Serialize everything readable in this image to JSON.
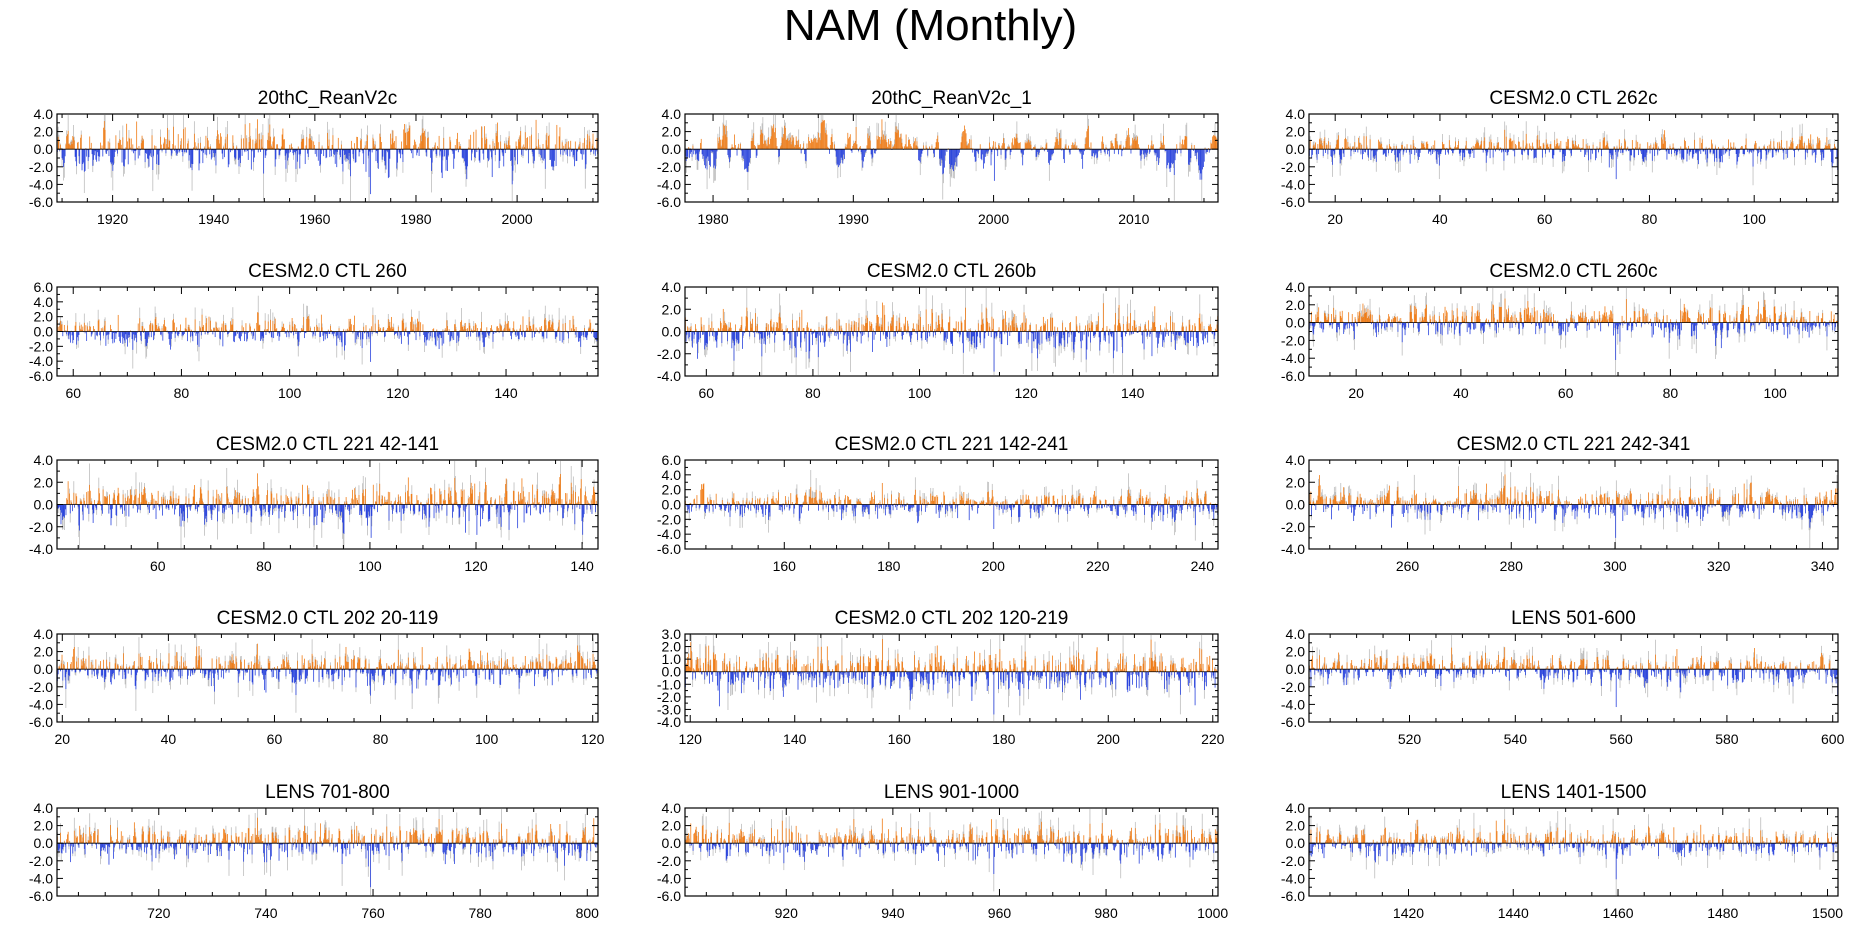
{
  "title": "NAM (Monthly)",
  "colors": {
    "positive": "#f07d18",
    "negative": "#2a44dd",
    "spread": "#bdbdbd",
    "axis": "#000000"
  },
  "chart_data": [
    {
      "type": "bar",
      "title": "20thC_ReanV2c",
      "xlim": [
        1909,
        2016
      ],
      "xticks": [
        1920,
        1940,
        1960,
        1980,
        2000
      ],
      "xtick_labels": [
        "1920",
        "1940",
        "1960",
        "1980",
        "2000"
      ],
      "ylim": [
        -6,
        4
      ],
      "yticks": [
        4,
        2,
        0,
        -2,
        -4,
        -6
      ],
      "ytick_labels": [
        "4.0",
        "2.0",
        "0.0",
        "-2.0",
        "-4.0",
        "-6.0"
      ],
      "extremes": {
        "max": 3.4,
        "min": -5.1
      },
      "density": 1.3,
      "smooth": 0.35,
      "seed": 11
    },
    {
      "type": "bar",
      "title": "20thC_ReanV2c_1",
      "xlim": [
        1978,
        2016
      ],
      "xticks": [
        1980,
        1990,
        2000,
        2010
      ],
      "xtick_labels": [
        "1980",
        "1990",
        "2000",
        "2010"
      ],
      "ylim": [
        -6,
        4
      ],
      "yticks": [
        4,
        2,
        0,
        -2,
        -4,
        -6
      ],
      "ytick_labels": [
        "4.0",
        "2.0",
        "0.0",
        "-2.0",
        "-4.0",
        "-6.0"
      ],
      "extremes": {
        "max": 3.4,
        "min": -3.6
      },
      "density": 1.2,
      "smooth": 0.8,
      "seed": 23
    },
    {
      "type": "bar",
      "title": "CESM2.0 CTL 262c",
      "xlim": [
        15,
        116
      ],
      "xticks": [
        20,
        40,
        60,
        80,
        100
      ],
      "xtick_labels": [
        "20",
        "40",
        "60",
        "80",
        "100"
      ],
      "ylim": [
        -6,
        4
      ],
      "yticks": [
        4,
        2,
        0,
        -2,
        -4,
        -6
      ],
      "ytick_labels": [
        "4.0",
        "2.0",
        "0.0",
        "-2.0",
        "-4.0",
        "-6.0"
      ],
      "extremes": {
        "max": 2.2,
        "min": -3.4
      },
      "density": 1.3,
      "smooth": 0.35,
      "seed": 37
    },
    {
      "type": "bar",
      "title": "CESM2.0 CTL 260",
      "xlim": [
        57,
        157
      ],
      "xticks": [
        60,
        80,
        100,
        120,
        140
      ],
      "xtick_labels": [
        "60",
        "80",
        "100",
        "120",
        "140"
      ],
      "ylim": [
        -6,
        6
      ],
      "yticks": [
        6,
        4,
        2,
        0,
        -2,
        -4,
        -6
      ],
      "ytick_labels": [
        "6.0",
        "4.0",
        "2.0",
        "0.0",
        "-2.0",
        "-4.0",
        "-6.0"
      ],
      "extremes": {
        "max": 2.6,
        "min": -4.1
      },
      "density": 1.3,
      "smooth": 0.3,
      "seed": 41
    },
    {
      "type": "bar",
      "title": "CESM2.0 CTL 260b",
      "xlim": [
        56,
        156
      ],
      "xticks": [
        60,
        80,
        100,
        120,
        140
      ],
      "xtick_labels": [
        "60",
        "80",
        "100",
        "120",
        "140"
      ],
      "ylim": [
        -4,
        4
      ],
      "yticks": [
        4,
        2,
        0,
        -2,
        -4
      ],
      "ytick_labels": [
        "4.0",
        "2.0",
        "0.0",
        "-2.0",
        "-4.0"
      ],
      "extremes": {
        "max": 2.6,
        "min": -3.6
      },
      "density": 1.4,
      "smooth": 0.3,
      "seed": 53
    },
    {
      "type": "bar",
      "title": "CESM2.0 CTL 260c",
      "xlim": [
        11,
        112
      ],
      "xticks": [
        20,
        40,
        60,
        80,
        100
      ],
      "xtick_labels": [
        "20",
        "40",
        "60",
        "80",
        "100"
      ],
      "ylim": [
        -6,
        4
      ],
      "yticks": [
        4,
        2,
        0,
        -2,
        -4,
        -6
      ],
      "ytick_labels": [
        "4.0",
        "2.0",
        "0.0",
        "-2.0",
        "-4.0",
        "-6.0"
      ],
      "extremes": {
        "max": 2.7,
        "min": -4.2
      },
      "density": 1.4,
      "smooth": 0.3,
      "seed": 67
    },
    {
      "type": "bar",
      "title": "CESM2.0 CTL 221 42-141",
      "xlim": [
        41,
        143
      ],
      "xticks": [
        60,
        80,
        100,
        120,
        140
      ],
      "xtick_labels": [
        "60",
        "80",
        "100",
        "120",
        "140"
      ],
      "ylim": [
        -4,
        4
      ],
      "yticks": [
        4,
        2,
        0,
        -2,
        -4
      ],
      "ytick_labels": [
        "4.0",
        "2.0",
        "0.0",
        "-2.0",
        "-4.0"
      ],
      "extremes": {
        "max": 2.8,
        "min": -3.0
      },
      "density": 1.4,
      "smooth": 0.3,
      "seed": 71
    },
    {
      "type": "bar",
      "title": "CESM2.0 CTL 221 142-241",
      "xlim": [
        141,
        243
      ],
      "xticks": [
        160,
        180,
        200,
        220,
        240
      ],
      "xtick_labels": [
        "160",
        "180",
        "200",
        "220",
        "240"
      ],
      "ylim": [
        -6,
        6
      ],
      "yticks": [
        6,
        4,
        2,
        0,
        -2,
        -4,
        -6
      ],
      "ytick_labels": [
        "6.0",
        "4.0",
        "2.0",
        "0.0",
        "-2.0",
        "-4.0",
        "-6.0"
      ],
      "extremes": {
        "max": 2.9,
        "min": -3.3
      },
      "density": 1.3,
      "smooth": 0.3,
      "seed": 83
    },
    {
      "type": "bar",
      "title": "CESM2.0 CTL 221 242-341",
      "xlim": [
        241,
        343
      ],
      "xticks": [
        260,
        280,
        300,
        320,
        340
      ],
      "xtick_labels": [
        "260",
        "280",
        "300",
        "320",
        "340"
      ],
      "ylim": [
        -4,
        4
      ],
      "yticks": [
        4,
        2,
        0,
        -2,
        -4
      ],
      "ytick_labels": [
        "4.0",
        "2.0",
        "0.0",
        "-2.0",
        "-4.0"
      ],
      "extremes": {
        "max": 2.7,
        "min": -3.0
      },
      "density": 1.4,
      "smooth": 0.3,
      "seed": 97
    },
    {
      "type": "bar",
      "title": "CESM2.0 CTL 202 20-119",
      "xlim": [
        19,
        121
      ],
      "xticks": [
        20,
        40,
        60,
        80,
        100,
        120
      ],
      "xtick_labels": [
        "20",
        "40",
        "60",
        "80",
        "100",
        "120"
      ],
      "ylim": [
        -6,
        4
      ],
      "yticks": [
        4,
        2,
        0,
        -2,
        -4,
        -6
      ],
      "ytick_labels": [
        "4.0",
        "2.0",
        "0.0",
        "-2.0",
        "-4.0",
        "-6.0"
      ],
      "extremes": {
        "max": 2.9,
        "min": -3.0
      },
      "density": 1.3,
      "smooth": 0.3,
      "seed": 101
    },
    {
      "type": "bar",
      "title": "CESM2.0 CTL 202 120-219",
      "xlim": [
        119,
        221
      ],
      "xticks": [
        120,
        140,
        160,
        180,
        200,
        220
      ],
      "xtick_labels": [
        "120",
        "140",
        "160",
        "180",
        "200",
        "220"
      ],
      "ylim": [
        -4,
        3
      ],
      "yticks": [
        3,
        2,
        1,
        0,
        -1,
        -2,
        -3,
        -4
      ],
      "ytick_labels": [
        "3.0",
        "2.0",
        "1.0",
        "0.0",
        "-1.0",
        "-2.0",
        "-3.0",
        "-4.0"
      ],
      "extremes": {
        "max": 2.6,
        "min": -3.4
      },
      "density": 1.5,
      "smooth": 0.3,
      "seed": 113
    },
    {
      "type": "bar",
      "title": "LENS 501-600",
      "xlim": [
        501,
        601
      ],
      "xticks": [
        520,
        540,
        560,
        580,
        600
      ],
      "xtick_labels": [
        "520",
        "540",
        "560",
        "580",
        "600"
      ],
      "ylim": [
        -6,
        4
      ],
      "yticks": [
        4,
        2,
        0,
        -2,
        -4,
        -6
      ],
      "ytick_labels": [
        "4.0",
        "2.0",
        "0.0",
        "-2.0",
        "-4.0",
        "-6.0"
      ],
      "extremes": {
        "max": 2.5,
        "min": -4.3
      },
      "density": 1.3,
      "smooth": 0.3,
      "seed": 127
    },
    {
      "type": "bar",
      "title": "LENS 701-800",
      "xlim": [
        701,
        802
      ],
      "xticks": [
        720,
        740,
        760,
        780,
        800
      ],
      "xtick_labels": [
        "720",
        "740",
        "760",
        "780",
        "800"
      ],
      "ylim": [
        -6,
        4
      ],
      "yticks": [
        4,
        2,
        0,
        -2,
        -4,
        -6
      ],
      "ytick_labels": [
        "4.0",
        "2.0",
        "0.0",
        "-2.0",
        "-4.0",
        "-6.0"
      ],
      "extremes": {
        "max": 2.9,
        "min": -5.0
      },
      "density": 1.3,
      "smooth": 0.3,
      "seed": 131
    },
    {
      "type": "bar",
      "title": "LENS 901-1000",
      "xlim": [
        901,
        1001
      ],
      "xticks": [
        920,
        940,
        960,
        980,
        1000
      ],
      "xtick_labels": [
        "920",
        "940",
        "960",
        "980",
        "1000"
      ],
      "ylim": [
        -6,
        4
      ],
      "yticks": [
        4,
        2,
        0,
        -2,
        -4,
        -6
      ],
      "ytick_labels": [
        "4.0",
        "2.0",
        "0.0",
        "-2.0",
        "-4.0",
        "-6.0"
      ],
      "extremes": {
        "max": 2.8,
        "min": -3.5
      },
      "density": 1.3,
      "smooth": 0.3,
      "seed": 149
    },
    {
      "type": "bar",
      "title": "LENS 1401-1500",
      "xlim": [
        1401,
        1502
      ],
      "xticks": [
        1420,
        1440,
        1460,
        1480,
        1500
      ],
      "xtick_labels": [
        "1420",
        "1440",
        "1460",
        "1480",
        "1500"
      ],
      "ylim": [
        -6,
        4
      ],
      "yticks": [
        4,
        2,
        0,
        -2,
        -4,
        -6
      ],
      "ytick_labels": [
        "4.0",
        "2.0",
        "0.0",
        "-2.0",
        "-4.0",
        "-6.0"
      ],
      "extremes": {
        "max": 2.7,
        "min": -4.1
      },
      "density": 1.3,
      "smooth": 0.3,
      "seed": 157
    }
  ]
}
